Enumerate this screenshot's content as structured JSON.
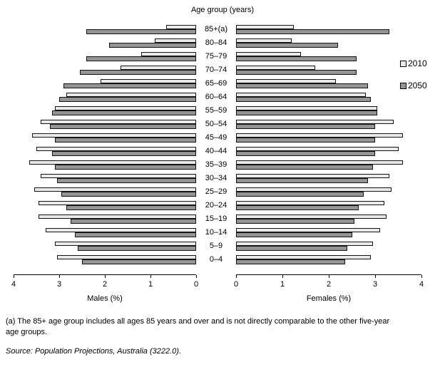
{
  "title": "Age group (years)",
  "legend": [
    {
      "label": "2010",
      "color": "#e9e9e9"
    },
    {
      "label": "2050",
      "color": "#949494"
    }
  ],
  "axes": {
    "left_caption": "Males (%)",
    "right_caption": "Females (%)",
    "left_ticks": [
      "4",
      "3",
      "2",
      "1",
      "0"
    ],
    "right_ticks": [
      "0",
      "1",
      "2",
      "3",
      "4"
    ]
  },
  "footnote": {
    "line1": "(a) The 85+ age group includes all ages 85 years and over and is not directly comparable to the other five-year",
    "line2": "age groups."
  },
  "source": "Source: Population Projections, Australia (3222.0).",
  "chart_data": {
    "type": "bar",
    "subtype": "population-pyramid",
    "orientation": "horizontal",
    "xlim": [
      0,
      4
    ],
    "grid": false,
    "legend_position": "top-right",
    "categories": [
      "85+(a)",
      "80–84",
      "75–79",
      "70–74",
      "65–69",
      "60–64",
      "55–59",
      "50–54",
      "45–49",
      "40–44",
      "35–39",
      "30–34",
      "25–29",
      "20–24",
      "15–19",
      "10–14",
      "5–9",
      "0–4"
    ],
    "series": [
      {
        "name": "Males 2010",
        "side": "male",
        "year": "2010",
        "values": [
          0.65,
          0.9,
          1.2,
          1.65,
          2.1,
          2.85,
          3.1,
          3.4,
          3.6,
          3.5,
          3.65,
          3.4,
          3.55,
          3.45,
          3.45,
          3.3,
          3.1,
          3.05
        ]
      },
      {
        "name": "Males 2050",
        "side": "male",
        "year": "2050",
        "values": [
          2.4,
          1.9,
          2.4,
          2.55,
          2.9,
          3.0,
          3.15,
          3.2,
          3.1,
          3.15,
          3.1,
          3.05,
          2.95,
          2.85,
          2.75,
          2.65,
          2.6,
          2.5
        ]
      },
      {
        "name": "Females 2010",
        "side": "female",
        "year": "2010",
        "values": [
          1.25,
          1.2,
          1.4,
          1.7,
          2.15,
          2.8,
          3.05,
          3.4,
          3.6,
          3.5,
          3.6,
          3.3,
          3.35,
          3.2,
          3.25,
          3.1,
          2.95,
          2.9
        ]
      },
      {
        "name": "Females 2050",
        "side": "female",
        "year": "2050",
        "values": [
          3.3,
          2.2,
          2.6,
          2.6,
          2.85,
          2.9,
          3.05,
          3.0,
          3.0,
          3.0,
          2.95,
          2.85,
          2.75,
          2.65,
          2.55,
          2.5,
          2.4,
          2.35
        ]
      }
    ]
  }
}
